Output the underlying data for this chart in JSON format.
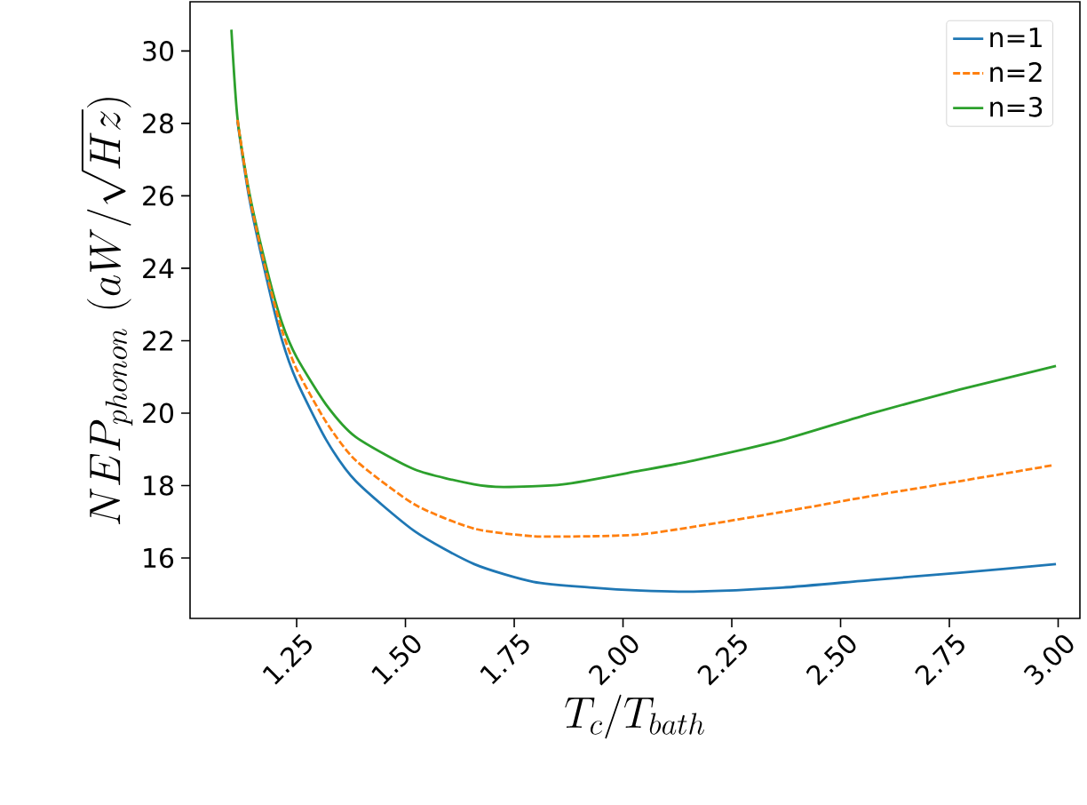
{
  "chart_data": {
    "type": "line",
    "xlabel": "T_c/T_{bath}",
    "ylabel": "NEP_{phonon}\\ (aW/\\sqrt{Hz})",
    "xlim": [
      1.005,
      3.05
    ],
    "ylim": [
      14.33,
      31.36
    ],
    "xticks": [
      {
        "value": 1.25,
        "label": "1.25"
      },
      {
        "value": 1.5,
        "label": "1.50"
      },
      {
        "value": 1.75,
        "label": "1.75"
      },
      {
        "value": 2.0,
        "label": "2.00"
      },
      {
        "value": 2.25,
        "label": "2.25"
      },
      {
        "value": 2.5,
        "label": "2.50"
      },
      {
        "value": 2.75,
        "label": "2.75"
      },
      {
        "value": 3.0,
        "label": "3.00"
      }
    ],
    "yticks": [
      16,
      18,
      20,
      22,
      24,
      26,
      28,
      30
    ],
    "grid": false,
    "legend": "top right",
    "series": [
      {
        "name": "n=1",
        "color": "#1f77b4",
        "line_style": "solid",
        "x": [
          1.114,
          1.141,
          1.182,
          1.216,
          1.25,
          1.318,
          1.386,
          1.522,
          1.658,
          1.794,
          1.93,
          2.04,
          2.162,
          2.366,
          2.57,
          2.774,
          2.995
        ],
        "values": [
          28.06,
          25.94,
          23.66,
          22.03,
          20.89,
          19.26,
          18.12,
          16.73,
          15.83,
          15.34,
          15.18,
          15.1,
          15.07,
          15.18,
          15.39,
          15.59,
          15.83
        ]
      },
      {
        "name": "n=2",
        "color": "#ff7f0e",
        "line_style": "dashed",
        "x": [
          1.114,
          1.141,
          1.182,
          1.216,
          1.25,
          1.318,
          1.386,
          1.522,
          1.658,
          1.794,
          1.93,
          2.04,
          2.162,
          2.366,
          2.57,
          2.774,
          2.988
        ],
        "values": [
          28.1,
          26.02,
          23.8,
          22.3,
          21.21,
          19.75,
          18.69,
          17.47,
          16.81,
          16.6,
          16.6,
          16.65,
          16.86,
          17.27,
          17.71,
          18.12,
          18.56
        ]
      },
      {
        "name": "n=3",
        "color": "#2ca02c",
        "line_style": "solid",
        "x": [
          1.1,
          1.114,
          1.141,
          1.182,
          1.216,
          1.25,
          1.318,
          1.386,
          1.522,
          1.658,
          1.726,
          1.862,
          2.04,
          2.162,
          2.366,
          2.57,
          2.774,
          2.995
        ],
        "values": [
          30.59,
          28.15,
          26.1,
          23.95,
          22.5,
          21.54,
          20.23,
          19.34,
          18.44,
          18.03,
          17.96,
          18.03,
          18.41,
          18.69,
          19.26,
          19.99,
          20.65,
          21.3
        ]
      }
    ]
  }
}
